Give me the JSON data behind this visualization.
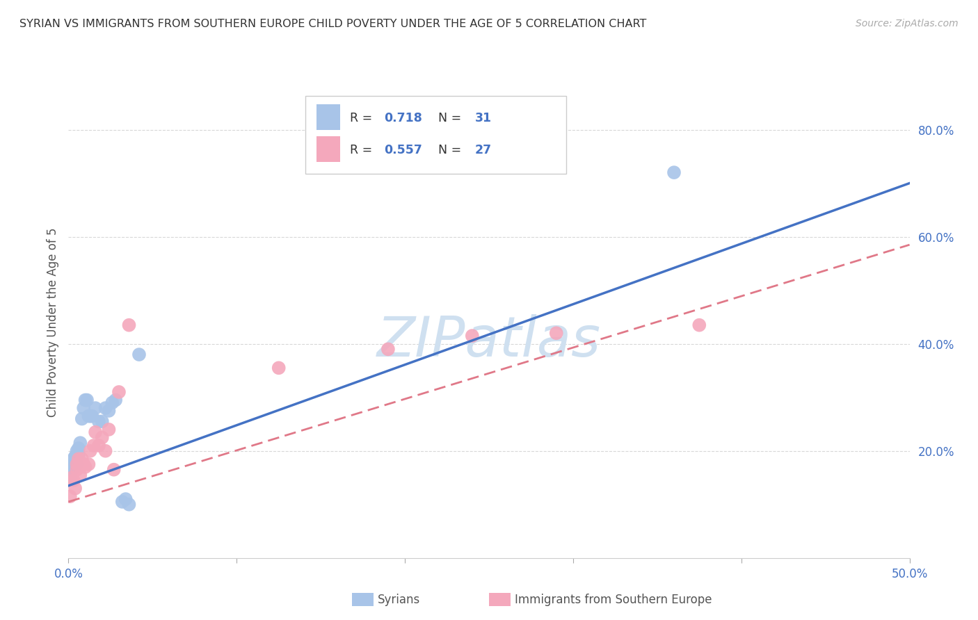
{
  "title": "SYRIAN VS IMMIGRANTS FROM SOUTHERN EUROPE CHILD POVERTY UNDER THE AGE OF 5 CORRELATION CHART",
  "source": "Source: ZipAtlas.com",
  "ylabel": "Child Poverty Under the Age of 5",
  "xlim": [
    0.0,
    0.5
  ],
  "ylim": [
    0.0,
    0.88
  ],
  "background_color": "#ffffff",
  "grid_color": "#d8d8d8",
  "axis_color": "#4472c4",
  "watermark_text": "ZIPatlas",
  "watermark_color": "#cfe0f0",
  "syrians_color": "#a8c4e8",
  "immigrants_color": "#f4a8bc",
  "line_syrian_color": "#4472c4",
  "line_immigrant_color": "#e07888",
  "R_syrian": 0.718,
  "N_syrian": 31,
  "R_immigrant": 0.557,
  "N_immigrant": 27,
  "syrians_x": [
    0.001,
    0.002,
    0.002,
    0.003,
    0.003,
    0.004,
    0.004,
    0.005,
    0.005,
    0.006,
    0.006,
    0.007,
    0.008,
    0.009,
    0.01,
    0.011,
    0.012,
    0.013,
    0.014,
    0.016,
    0.018,
    0.02,
    0.022,
    0.024,
    0.026,
    0.028,
    0.032,
    0.034,
    0.036,
    0.042,
    0.36
  ],
  "syrians_y": [
    0.155,
    0.165,
    0.175,
    0.175,
    0.185,
    0.19,
    0.175,
    0.2,
    0.175,
    0.195,
    0.205,
    0.215,
    0.26,
    0.28,
    0.295,
    0.295,
    0.265,
    0.265,
    0.265,
    0.28,
    0.255,
    0.255,
    0.28,
    0.275,
    0.29,
    0.295,
    0.105,
    0.11,
    0.1,
    0.38,
    0.72
  ],
  "immigrants_x": [
    0.001,
    0.002,
    0.003,
    0.004,
    0.005,
    0.005,
    0.006,
    0.007,
    0.008,
    0.009,
    0.01,
    0.012,
    0.013,
    0.015,
    0.016,
    0.018,
    0.02,
    0.022,
    0.024,
    0.027,
    0.03,
    0.036,
    0.125,
    0.19,
    0.24,
    0.29,
    0.375
  ],
  "immigrants_y": [
    0.115,
    0.15,
    0.145,
    0.13,
    0.165,
    0.175,
    0.185,
    0.155,
    0.185,
    0.175,
    0.17,
    0.175,
    0.2,
    0.21,
    0.235,
    0.21,
    0.225,
    0.2,
    0.24,
    0.165,
    0.31,
    0.435,
    0.355,
    0.39,
    0.415,
    0.42,
    0.435
  ],
  "xtick_positions": [
    0.0,
    0.1,
    0.2,
    0.3,
    0.4,
    0.5
  ],
  "xtick_labels": [
    "0.0%",
    "",
    "",
    "",
    "",
    "50.0%"
  ],
  "ytick_positions": [
    0.2,
    0.4,
    0.6,
    0.8
  ],
  "ytick_labels": [
    "20.0%",
    "40.0%",
    "60.0%",
    "80.0%"
  ],
  "bottom_legend_syrians": "Syrians",
  "bottom_legend_immigrants": "Immigrants from Southern Europe"
}
